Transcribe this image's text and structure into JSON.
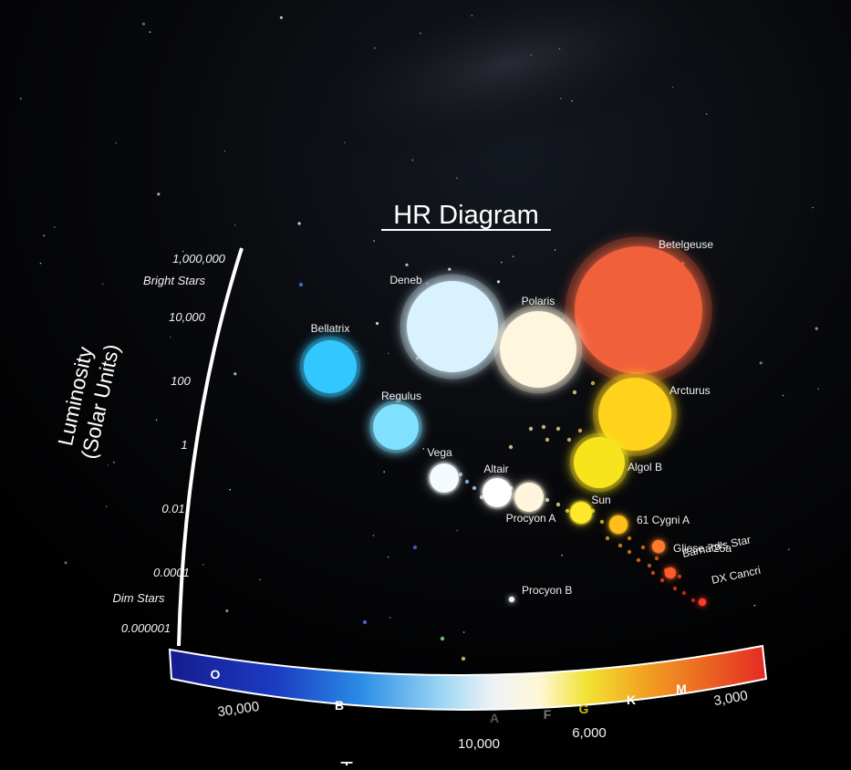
{
  "chart_data": {
    "type": "scatter",
    "title": "HR Diagram",
    "ylabel_line1": "Luminosity",
    "ylabel_line2": "(Solar Units)",
    "xlabel_partial": "T",
    "y_scale": "log",
    "x_scale": "reversed",
    "ylim": [
      1e-06,
      1000000
    ],
    "xlim": [
      30000,
      3000
    ],
    "y_ticks": [
      "1,000,000",
      "Bright Stars",
      "10,000",
      "100",
      "1",
      "0.01",
      "0.0001",
      "Dim Stars",
      "0.000001"
    ],
    "x_ticks": [
      "30,000",
      "10,000",
      "6,000",
      "3,000"
    ],
    "spectral_classes": [
      "O",
      "B",
      "A",
      "F",
      "G",
      "K",
      "M"
    ],
    "colors": {
      "background": "#000000",
      "axis": "#ffffff",
      "O": "#1a1f9e",
      "B": "#2a7de0",
      "A": "#e8eef5",
      "F": "#fff6d6",
      "G": "#f2e23a",
      "K": "#f2a020",
      "M": "#e83a2a"
    },
    "stars": [
      {
        "name": "Betelgeuse",
        "color": "#f0603a",
        "size": 70
      },
      {
        "name": "Deneb",
        "color": "#d8f2ff",
        "size": 50
      },
      {
        "name": "Polaris",
        "color": "#fff6e0",
        "size": 42
      },
      {
        "name": "Bellatrix",
        "color": "#33c8ff",
        "size": 29
      },
      {
        "name": "Arcturus",
        "color": "#ffd21a",
        "size": 40
      },
      {
        "name": "Regulus",
        "color": "#7fe0ff",
        "size": 25
      },
      {
        "name": "Algol B",
        "color": "#f8e41e",
        "size": 28
      },
      {
        "name": "Vega",
        "color": "#f4fbff",
        "size": 16
      },
      {
        "name": "Altair",
        "color": "#ffffff",
        "size": 16
      },
      {
        "name": "Procyon A",
        "color": "#fff4dc",
        "size": 16
      },
      {
        "name": "Sun",
        "color": "#fde82a",
        "size": 12
      },
      {
        "name": "61 Cygni A",
        "color": "#ffbe1e",
        "size": 10
      },
      {
        "name": "Gliese 725a",
        "color": "#ff7a2a",
        "size": 7
      },
      {
        "name": "Barnard's Star",
        "color": "#ff5a2a",
        "size": 6
      },
      {
        "name": "DX Cancri",
        "color": "#ff3a2a",
        "size": 4
      },
      {
        "name": "Procyon B",
        "color": "#f0f4ff",
        "size": 3
      }
    ]
  }
}
